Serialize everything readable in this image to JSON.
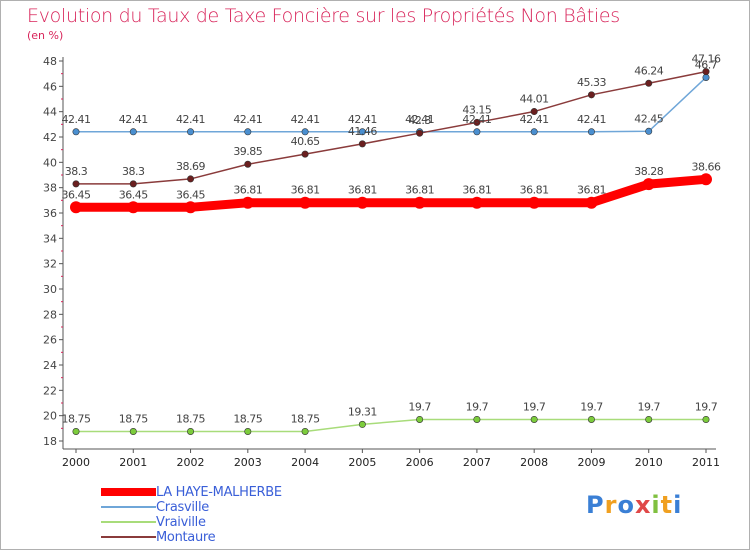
{
  "chart_data": {
    "type": "line",
    "title": "Evolution du Taux de Taxe Foncière sur les Propriétés Non Bâties",
    "subtitle": "(en %)",
    "x": [
      "2000",
      "2001",
      "2002",
      "2003",
      "2004",
      "2005",
      "2006",
      "2007",
      "2008",
      "2009",
      "2010",
      "2011"
    ],
    "ylim": [
      18,
      48
    ],
    "yticks": [
      18,
      20,
      22,
      24,
      26,
      28,
      30,
      32,
      34,
      36,
      38,
      40,
      42,
      44,
      46,
      48
    ],
    "grid": false,
    "legend_position": "bottom-left",
    "series": [
      {
        "name": "LA HAYE-MALHERBE",
        "color": "#ff0000",
        "width": 9,
        "values": [
          36.45,
          36.45,
          36.45,
          36.81,
          36.81,
          36.81,
          36.81,
          36.81,
          36.81,
          36.81,
          38.28,
          38.66
        ],
        "labels": [
          "36.45",
          "36.45",
          "36.45",
          "36.81",
          "36.81",
          "36.81",
          "36.81",
          "36.81",
          "36.81",
          "36.81",
          "38.28",
          "38.66"
        ]
      },
      {
        "name": "Crasville",
        "color": "#6fa6d8",
        "marker": "#4a8fd0",
        "width": 1.5,
        "values": [
          42.41,
          42.41,
          42.41,
          42.41,
          42.41,
          42.41,
          42.41,
          42.41,
          42.41,
          42.41,
          42.45,
          46.7
        ],
        "labels": [
          "42.41",
          "42.41",
          "42.41",
          "42.41",
          "42.41",
          "42.41",
          "42.41",
          "42.41",
          "42.41",
          "42.41",
          "42.45",
          "46.7"
        ]
      },
      {
        "name": "Vraiville",
        "color": "#a8dc7a",
        "marker": "#7ccc3c",
        "width": 1.5,
        "values": [
          18.75,
          18.75,
          18.75,
          18.75,
          18.75,
          19.31,
          19.7,
          19.7,
          19.7,
          19.7,
          19.7,
          19.7
        ],
        "labels": [
          "18.75",
          "18.75",
          "18.75",
          "18.75",
          "18.75",
          "19.31",
          "19.7",
          "19.7",
          "19.7",
          "19.7",
          "19.7",
          "19.7"
        ]
      },
      {
        "name": "Montaure",
        "color": "#8a3b3b",
        "marker": "#6b1f1f",
        "width": 1.5,
        "values": [
          38.3,
          38.3,
          38.69,
          39.85,
          40.65,
          41.46,
          42.3,
          43.15,
          44.01,
          45.33,
          46.24,
          47.16
        ],
        "labels": [
          "38.3",
          "38.3",
          "38.69",
          "39.85",
          "40.65",
          "41.46",
          "42.3",
          "43.15",
          "44.01",
          "45.33",
          "46.24",
          "47.16"
        ]
      }
    ]
  },
  "logo": {
    "text": "Proxiti",
    "colors": [
      "#3a7fd5",
      "#f0a020",
      "#3a7fd5",
      "#e04848",
      "#80c040",
      "#f0a020",
      "#3a7fd5"
    ]
  }
}
